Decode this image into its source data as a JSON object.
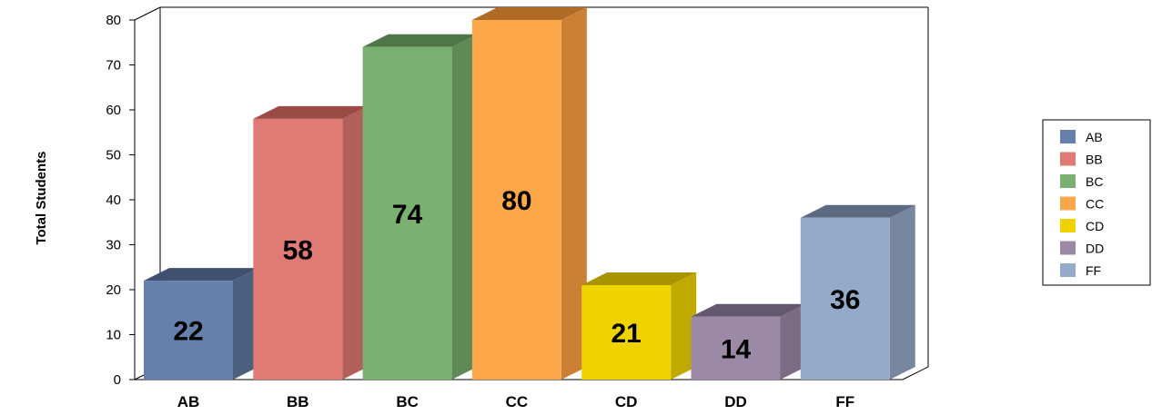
{
  "chart_data": {
    "type": "bar",
    "categories": [
      "AB",
      "BB",
      "BC",
      "CC",
      "CD",
      "DD",
      "FF"
    ],
    "values": [
      22,
      58,
      74,
      80,
      21,
      14,
      36
    ],
    "title": "",
    "xlabel": "",
    "ylabel": "Total Students",
    "ylim": [
      0,
      80
    ],
    "yticks": [
      0,
      10,
      20,
      30,
      40,
      50,
      60,
      70,
      80
    ],
    "grid": false,
    "legend": {
      "position": "right",
      "entries": [
        "AB",
        "BB",
        "BC",
        "CC",
        "CD",
        "DD",
        "FF"
      ]
    },
    "colors": {
      "front": [
        "#6580aa",
        "#e07a74",
        "#7ab070",
        "#fca84a",
        "#eed300",
        "#9c89a6",
        "#95a9c8"
      ],
      "side": [
        "#4b607f",
        "#b35f5a",
        "#5f8a57",
        "#cc8035",
        "#c0aa00",
        "#7b6c84",
        "#76879f"
      ],
      "top": [
        "#3f5070",
        "#9a4b46",
        "#4e7647",
        "#b06b27",
        "#a89400",
        "#645770",
        "#5c6a80"
      ]
    }
  }
}
